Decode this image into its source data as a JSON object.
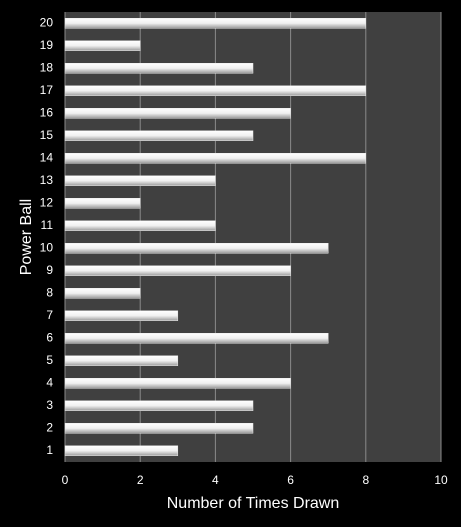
{
  "chart_data": {
    "type": "barh",
    "xlabel": "Number of Times Drawn",
    "ylabel": "Power Ball",
    "categories": [
      "1",
      "2",
      "3",
      "4",
      "5",
      "6",
      "7",
      "8",
      "9",
      "10",
      "11",
      "12",
      "13",
      "14",
      "15",
      "16",
      "17",
      "18",
      "19",
      "20"
    ],
    "values": [
      3,
      5,
      5,
      6,
      3,
      7,
      3,
      2,
      6,
      7,
      4,
      2,
      4,
      8,
      5,
      6,
      8,
      5,
      2,
      8
    ],
    "color": "#e8e8e8",
    "xlim": [
      0,
      10
    ],
    "xticks": [
      0,
      2,
      4,
      6,
      8,
      10
    ],
    "grid": true
  }
}
